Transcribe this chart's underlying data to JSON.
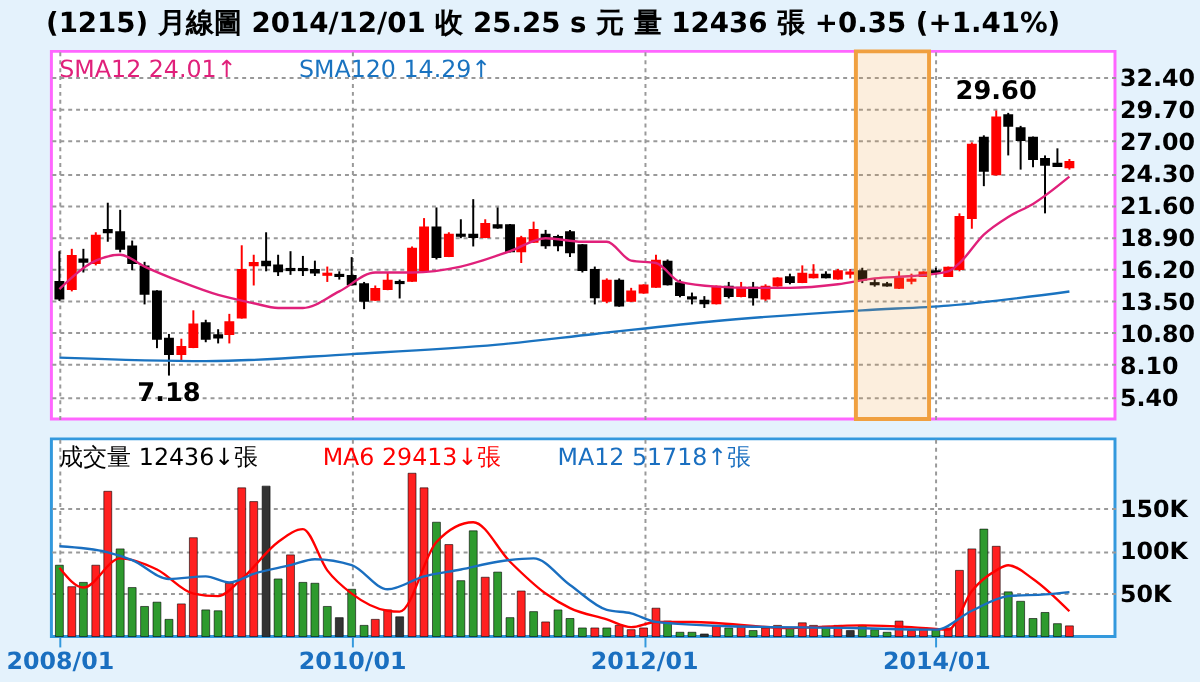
{
  "chart_data": [
    {
      "type": "candlestick",
      "title": "(1215) 月線圖  2014/12/01  收 25.25 s 元  量 12436 張  +0.35 (+1.41%)",
      "x": [
        "2008-01",
        "2008-02",
        "2008-03",
        "2008-04",
        "2008-05",
        "2008-06",
        "2008-07",
        "2008-08",
        "2008-09",
        "2008-10",
        "2008-11",
        "2008-12",
        "2009-01",
        "2009-02",
        "2009-03",
        "2009-04",
        "2009-05",
        "2009-06",
        "2009-07",
        "2009-08",
        "2009-09",
        "2009-10",
        "2009-11",
        "2009-12",
        "2010-01",
        "2010-02",
        "2010-03",
        "2010-04",
        "2010-05",
        "2010-06",
        "2010-07",
        "2010-08",
        "2010-09",
        "2010-10",
        "2010-11",
        "2010-12",
        "2011-01",
        "2011-02",
        "2011-03",
        "2011-04",
        "2011-05",
        "2011-06",
        "2011-07",
        "2011-08",
        "2011-09",
        "2011-10",
        "2011-11",
        "2011-12",
        "2012-01",
        "2012-02",
        "2012-03",
        "2012-04",
        "2012-05",
        "2012-06",
        "2012-07",
        "2012-08",
        "2012-09",
        "2012-10",
        "2012-11",
        "2012-12",
        "2013-01",
        "2013-02",
        "2013-03",
        "2013-04",
        "2013-05",
        "2013-06",
        "2013-07",
        "2013-08",
        "2013-09",
        "2013-10",
        "2013-11",
        "2013-12",
        "2014-01",
        "2014-02",
        "2014-03",
        "2014-04",
        "2014-05",
        "2014-06",
        "2014-07",
        "2014-08",
        "2014-09",
        "2014-10",
        "2014-11",
        "2014-12"
      ],
      "ohlc": [
        [
          15.1,
          17.7,
          13.5,
          13.7
        ],
        [
          14.5,
          17.9,
          14.3,
          17.3
        ],
        [
          17.0,
          17.9,
          15.9,
          16.8
        ],
        [
          16.7,
          19.3,
          16.5,
          19.0
        ],
        [
          19.5,
          21.8,
          18.5,
          19.3
        ],
        [
          19.3,
          21.2,
          17.6,
          17.9
        ],
        [
          18.1,
          18.6,
          16.1,
          16.7
        ],
        [
          16.4,
          16.8,
          13.2,
          14.1
        ],
        [
          14.3,
          14.4,
          9.5,
          10.3
        ],
        [
          10.3,
          10.7,
          7.18,
          9.0
        ],
        [
          9.0,
          10.3,
          8.4,
          9.6
        ],
        [
          9.6,
          12.7,
          9.5,
          11.5
        ],
        [
          11.6,
          11.9,
          10.0,
          10.3
        ],
        [
          10.6,
          11.1,
          9.9,
          10.4
        ],
        [
          10.7,
          12.4,
          9.9,
          11.7
        ],
        [
          12.1,
          18.2,
          12.0,
          16.1
        ],
        [
          16.5,
          17.4,
          14.8,
          16.7
        ],
        [
          16.8,
          19.3,
          16.0,
          16.5
        ],
        [
          16.5,
          17.4,
          15.6,
          16.0
        ],
        [
          16.2,
          17.7,
          15.7,
          16.1
        ],
        [
          16.2,
          17.3,
          15.6,
          16.1
        ],
        [
          16.1,
          16.9,
          15.6,
          15.9
        ],
        [
          15.7,
          16.4,
          15.1,
          15.8
        ],
        [
          15.7,
          16.0,
          15.3,
          15.6
        ],
        [
          15.6,
          17.2,
          14.8,
          14.9
        ],
        [
          14.9,
          15.1,
          12.8,
          13.5
        ],
        [
          13.6,
          14.8,
          13.5,
          14.5
        ],
        [
          14.5,
          15.9,
          14.4,
          15.2
        ],
        [
          15.1,
          15.3,
          13.7,
          15.0
        ],
        [
          15.2,
          18.1,
          15.1,
          17.9
        ],
        [
          16.1,
          20.5,
          15.9,
          19.7
        ],
        [
          19.7,
          21.4,
          17.0,
          17.2
        ],
        [
          17.3,
          19.3,
          17.2,
          19.1
        ],
        [
          19.1,
          20.4,
          18.8,
          19.0
        ],
        [
          19.1,
          22.1,
          18.1,
          18.9
        ],
        [
          18.9,
          20.4,
          18.8,
          20.0
        ],
        [
          19.9,
          21.4,
          19.6,
          19.7
        ],
        [
          19.9,
          20.0,
          17.6,
          17.7
        ],
        [
          17.7,
          19.0,
          16.7,
          18.8
        ],
        [
          18.5,
          20.2,
          18.4,
          19.5
        ],
        [
          19.1,
          19.5,
          17.9,
          18.2
        ],
        [
          18.9,
          19.1,
          17.7,
          18.2
        ],
        [
          19.3,
          19.5,
          17.2,
          17.6
        ],
        [
          18.2,
          18.3,
          15.9,
          16.1
        ],
        [
          16.1,
          16.4,
          13.2,
          13.8
        ],
        [
          13.5,
          15.4,
          13.3,
          15.2
        ],
        [
          15.2,
          15.4,
          13.0,
          13.1
        ],
        [
          13.5,
          14.6,
          13.4,
          14.3
        ],
        [
          14.2,
          14.9,
          14.1,
          14.8
        ],
        [
          14.7,
          17.4,
          14.6,
          16.9
        ],
        [
          16.8,
          17.0,
          14.8,
          14.9
        ],
        [
          15.0,
          15.3,
          13.8,
          14.0
        ],
        [
          13.8,
          14.2,
          13.2,
          13.7
        ],
        [
          13.5,
          13.9,
          12.9,
          13.3
        ],
        [
          13.3,
          14.8,
          13.2,
          14.7
        ],
        [
          14.7,
          15.1,
          13.7,
          13.9
        ],
        [
          13.9,
          15.1,
          13.8,
          14.6
        ],
        [
          14.6,
          15.1,
          13.1,
          13.8
        ],
        [
          13.7,
          14.9,
          13.5,
          14.7
        ],
        [
          14.8,
          15.5,
          14.7,
          15.4
        ],
        [
          15.5,
          15.8,
          14.9,
          15.1
        ],
        [
          15.1,
          16.5,
          15.0,
          15.8
        ],
        [
          15.5,
          16.6,
          15.4,
          15.7
        ],
        [
          15.7,
          16.0,
          15.4,
          15.5
        ],
        [
          15.4,
          16.2,
          15.3,
          16.0
        ],
        [
          15.8,
          16.2,
          15.4,
          15.9
        ],
        [
          16.0,
          16.3,
          15.0,
          15.3
        ],
        [
          15.0,
          15.4,
          14.7,
          14.9
        ],
        [
          14.9,
          15.1,
          14.7,
          14.8
        ],
        [
          14.6,
          16.0,
          14.5,
          15.4
        ],
        [
          15.2,
          15.8,
          14.9,
          15.3
        ],
        [
          15.6,
          16.0,
          15.6,
          15.9
        ],
        [
          16.0,
          16.3,
          15.7,
          15.9
        ],
        [
          15.6,
          16.4,
          15.6,
          16.3
        ],
        [
          16.2,
          20.9,
          16.0,
          20.6
        ],
        [
          20.5,
          26.9,
          19.6,
          26.7
        ],
        [
          27.3,
          27.5,
          23.2,
          24.5
        ],
        [
          24.2,
          29.6,
          24.1,
          29.0
        ],
        [
          29.2,
          29.4,
          25.8,
          28.3
        ],
        [
          28.1,
          28.3,
          24.6,
          27.1
        ],
        [
          27.3,
          27.4,
          24.8,
          25.5
        ],
        [
          25.5,
          25.8,
          20.9,
          25.0
        ],
        [
          25.1,
          26.4,
          24.9,
          24.9
        ],
        [
          24.8,
          25.5,
          24.6,
          25.25
        ]
      ],
      "colors": [
        "#000000",
        "#ff0000",
        "#000000",
        "#ff0000",
        "#000000",
        "#000000",
        "#000000",
        "#000000",
        "#000000",
        "#000000",
        "#ff0000",
        "#ff0000",
        "#000000",
        "#000000",
        "#ff0000",
        "#ff0000",
        "#ff0000",
        "#000000",
        "#000000",
        "#000000",
        "#000000",
        "#000000",
        "#ff0000",
        "#000000",
        "#000000",
        "#000000",
        "#ff0000",
        "#ff0000",
        "#000000",
        "#ff0000",
        "#ff0000",
        "#000000",
        "#ff0000",
        "#000000",
        "#000000",
        "#ff0000",
        "#000000",
        "#000000",
        "#ff0000",
        "#ff0000",
        "#000000",
        "#000000",
        "#000000",
        "#000000",
        "#000000",
        "#ff0000",
        "#000000",
        "#ff0000",
        "#ff0000",
        "#ff0000",
        "#000000",
        "#000000",
        "#000000",
        "#000000",
        "#ff0000",
        "#000000",
        "#ff0000",
        "#000000",
        "#ff0000",
        "#ff0000",
        "#000000",
        "#ff0000",
        "#ff0000",
        "#000000",
        "#ff0000",
        "#ff0000",
        "#000000",
        "#000000",
        "#000000",
        "#ff0000",
        "#ff0000",
        "#ff0000",
        "#000000",
        "#ff0000",
        "#ff0000",
        "#ff0000",
        "#000000",
        "#ff0000",
        "#000000",
        "#000000",
        "#000000",
        "#000000",
        "#000000",
        "#ff0000"
      ],
      "series": [
        {
          "name": "SMA12 24.01↑",
          "type": "line",
          "color": "#e0207a",
          "x": [
            "2008-01",
            "2008-04",
            "2008-06",
            "2008-08",
            "2008-11",
            "2009-02",
            "2009-05",
            "2009-07",
            "2009-09",
            "2009-12",
            "2010-03",
            "2010-06",
            "2010-10",
            "2011-02",
            "2011-05",
            "2011-08",
            "2011-10",
            "2011-12",
            "2012-02",
            "2012-04",
            "2012-07",
            "2012-10",
            "2013-01",
            "2013-05",
            "2013-08",
            "2013-11",
            "2014-02",
            "2014-03",
            "2014-05",
            "2014-07",
            "2014-09",
            "2014-12"
          ],
          "values": [
            14.5,
            16.9,
            17.4,
            16.4,
            15.1,
            14.0,
            13.3,
            12.9,
            12.9,
            14.3,
            15.9,
            15.9,
            16.4,
            17.7,
            18.8,
            18.5,
            18.5,
            16.9,
            16.7,
            15.1,
            14.7,
            14.6,
            14.6,
            14.9,
            15.4,
            15.6,
            16.0,
            16.7,
            19.1,
            20.6,
            21.7,
            24.01
          ]
        },
        {
          "name": "SMA120 14.29↑",
          "type": "line",
          "color": "#1a73c0",
          "x": [
            "2008-01",
            "2009-01",
            "2010-01",
            "2011-01",
            "2011-09",
            "2012-07",
            "2013-07",
            "2014-02",
            "2014-12"
          ],
          "values": [
            8.7,
            8.4,
            9.0,
            9.8,
            10.7,
            11.8,
            12.7,
            13.1,
            14.29
          ]
        }
      ],
      "annotations": [
        {
          "text": "7.18",
          "x": "2008-10",
          "y": 7.18
        },
        {
          "text": "29.60",
          "x": "2014-06",
          "y": 29.6
        }
      ],
      "bands": [
        {
          "axis": "x",
          "from": "2013-06-15",
          "to": "2013-12-15",
          "color": "#f0a040"
        }
      ],
      "xlim": [
        "2007-12-12",
        "2015-03-25"
      ],
      "xticks": [
        {
          "value": "2008-01",
          "label": null
        },
        {
          "value": "2010-01",
          "label": null
        },
        {
          "value": "2012-01",
          "label": null
        },
        {
          "value": "2014-01",
          "label": null
        }
      ],
      "ylim": [
        3.5,
        34.6
      ],
      "yticks": [
        {
          "value": 5.4,
          "label": "5.40"
        },
        {
          "value": 8.1,
          "label": "8.10"
        },
        {
          "value": 10.8,
          "label": "10.80"
        },
        {
          "value": 13.5,
          "label": "13.50"
        },
        {
          "value": 16.2,
          "label": "16.20"
        },
        {
          "value": 18.9,
          "label": "18.90"
        },
        {
          "value": 21.6,
          "label": "21.60"
        },
        {
          "value": 24.3,
          "label": "24.30"
        },
        {
          "value": 27,
          "label": "27.00"
        },
        {
          "value": 29.7,
          "label": "29.70"
        },
        {
          "value": 32.4,
          "label": "32.40"
        }
      ],
      "grid": true,
      "legend": "top left",
      "tick_labels": "y"
    },
    {
      "type": "bar",
      "x": [
        "2008-01",
        "2008-02",
        "2008-03",
        "2008-04",
        "2008-05",
        "2008-06",
        "2008-07",
        "2008-08",
        "2008-09",
        "2008-10",
        "2008-11",
        "2008-12",
        "2009-01",
        "2009-02",
        "2009-03",
        "2009-04",
        "2009-05",
        "2009-06",
        "2009-07",
        "2009-08",
        "2009-09",
        "2009-10",
        "2009-11",
        "2009-12",
        "2010-01",
        "2010-02",
        "2010-03",
        "2010-04",
        "2010-05",
        "2010-06",
        "2010-07",
        "2010-08",
        "2010-09",
        "2010-10",
        "2010-11",
        "2010-12",
        "2011-01",
        "2011-02",
        "2011-03",
        "2011-04",
        "2011-05",
        "2011-06",
        "2011-07",
        "2011-08",
        "2011-09",
        "2011-10",
        "2011-11",
        "2011-12",
        "2012-01",
        "2012-02",
        "2012-03",
        "2012-04",
        "2012-05",
        "2012-06",
        "2012-07",
        "2012-08",
        "2012-09",
        "2012-10",
        "2012-11",
        "2012-12",
        "2013-01",
        "2013-02",
        "2013-03",
        "2013-04",
        "2013-05",
        "2013-06",
        "2013-07",
        "2013-08",
        "2013-09",
        "2013-10",
        "2013-11",
        "2013-12",
        "2014-01",
        "2014-02",
        "2014-03",
        "2014-04",
        "2014-05",
        "2014-06",
        "2014-07",
        "2014-08",
        "2014-09",
        "2014-10",
        "2014-11",
        "2014-12"
      ],
      "series": [
        {
          "name": "成交量 12436↓張",
          "type": "bar",
          "color": "#000000",
          "values": [
            83000,
            58000,
            63000,
            83000,
            169000,
            102000,
            57000,
            35000,
            40000,
            20000,
            38000,
            115000,
            31000,
            30000,
            62000,
            173000,
            157000,
            175000,
            67000,
            95000,
            63000,
            62000,
            35000,
            22000,
            55000,
            13000,
            20000,
            31000,
            23000,
            190000,
            173000,
            133000,
            107000,
            65000,
            123000,
            69000,
            75000,
            22000,
            53000,
            29000,
            17000,
            31000,
            21000,
            10000,
            10000,
            10000,
            13000,
            8000,
            10000,
            33000,
            18000,
            5000,
            5000,
            3000,
            13000,
            10000,
            13000,
            7000,
            10000,
            13000,
            10000,
            16000,
            13000,
            12000,
            13000,
            7000,
            13000,
            8000,
            5000,
            18000,
            7000,
            10000,
            8000,
            10000,
            77000,
            102000,
            125000,
            105000,
            52000,
            41000,
            21000,
            28000,
            15000,
            12436
          ],
          "colors": [
            "#2e9a2e",
            "#ff2020",
            "#2e9a2e",
            "#ff2020",
            "#ff2020",
            "#2e9a2e",
            "#2e9a2e",
            "#2e9a2e",
            "#2e9a2e",
            "#2e9a2e",
            "#ff2020",
            "#ff2020",
            "#2e9a2e",
            "#2e9a2e",
            "#ff2020",
            "#ff2020",
            "#ff2020",
            "#333333",
            "#2e9a2e",
            "#ff2020",
            "#2e9a2e",
            "#2e9a2e",
            "#2e9a2e",
            "#333333",
            "#2e9a2e",
            "#2e9a2e",
            "#ff2020",
            "#ff2020",
            "#333333",
            "#ff2020",
            "#ff2020",
            "#2e9a2e",
            "#ff2020",
            "#2e9a2e",
            "#2e9a2e",
            "#ff2020",
            "#2e9a2e",
            "#2e9a2e",
            "#ff2020",
            "#2e9a2e",
            "#ff2020",
            "#2e9a2e",
            "#2e9a2e",
            "#2e9a2e",
            "#ff2020",
            "#2e9a2e",
            "#ff2020",
            "#ff2020",
            "#ff2020",
            "#ff2020",
            "#2e9a2e",
            "#2e9a2e",
            "#2e9a2e",
            "#333333",
            "#ff2020",
            "#2e9a2e",
            "#ff2020",
            "#2e9a2e",
            "#ff2020",
            "#ff2020",
            "#2e9a2e",
            "#ff2020",
            "#ff2020",
            "#2e9a2e",
            "#ff2020",
            "#333333",
            "#2e9a2e",
            "#2e9a2e",
            "#2e9a2e",
            "#ff2020",
            "#ff2020",
            "#ff2020",
            "#2e9a2e",
            "#ff2020",
            "#ff2020",
            "#ff2020",
            "#2e9a2e",
            "#ff2020",
            "#2e9a2e",
            "#2e9a2e",
            "#2e9a2e",
            "#2e9a2e",
            "#2e9a2e",
            "#ff2020"
          ]
        },
        {
          "name": "MA6 29413↓張",
          "type": "line",
          "color": "#ff0000",
          "x": [
            "2008-01",
            "2008-03",
            "2008-06",
            "2008-09",
            "2008-12",
            "2009-02",
            "2009-04",
            "2009-07",
            "2009-09",
            "2009-11",
            "2010-01",
            "2010-04",
            "2010-05",
            "2010-08",
            "2010-11",
            "2011-02",
            "2011-05",
            "2011-07",
            "2011-10",
            "2011-12",
            "2012-02",
            "2012-05",
            "2013-01",
            "2013-07",
            "2013-11",
            "2014-02",
            "2014-04",
            "2014-06",
            "2014-07",
            "2014-09",
            "2014-12"
          ],
          "values": [
            80000,
            57000,
            91000,
            78000,
            50000,
            47000,
            67000,
            110000,
            125000,
            77000,
            50000,
            30000,
            29000,
            110000,
            133000,
            87000,
            50000,
            33000,
            20000,
            11000,
            17000,
            17000,
            10000,
            13000,
            11000,
            8000,
            53000,
            77000,
            83000,
            67000,
            29413
          ]
        },
        {
          "name": "MA12 51718↑張",
          "type": "line",
          "color": "#1a6fc0",
          "x": [
            "2008-01",
            "2008-05",
            "2008-07",
            "2008-10",
            "2009-01",
            "2009-03",
            "2009-05",
            "2009-08",
            "2009-10",
            "2010-01",
            "2010-04",
            "2010-07",
            "2010-10",
            "2011-01",
            "2011-04",
            "2011-07",
            "2011-10",
            "2011-12",
            "2012-02",
            "2012-08",
            "2013-06",
            "2014-01",
            "2014-04",
            "2014-07",
            "2014-10",
            "2014-12"
          ],
          "values": [
            105000,
            98000,
            89000,
            67000,
            70000,
            63000,
            73000,
            83000,
            90000,
            83000,
            55000,
            70000,
            78000,
            87000,
            91000,
            60000,
            31000,
            27000,
            17000,
            12000,
            10000,
            8000,
            30000,
            47000,
            49000,
            51718
          ]
        }
      ],
      "xlim": [
        "2007-12-12",
        "2015-03-25"
      ],
      "xticks": [
        {
          "value": "2008-01",
          "label": "2008/01"
        },
        {
          "value": "2010-01",
          "label": "2010/01"
        },
        {
          "value": "2012-01",
          "label": "2012/01"
        },
        {
          "value": "2014-01",
          "label": "2014/01"
        }
      ],
      "ylim": [
        0,
        230000
      ],
      "yticks": [
        {
          "value": 50000,
          "label": "50K"
        },
        {
          "value": 100000,
          "label": "100K"
        },
        {
          "value": 150000,
          "label": "150K"
        }
      ],
      "grid": true,
      "legend": "top left"
    }
  ]
}
